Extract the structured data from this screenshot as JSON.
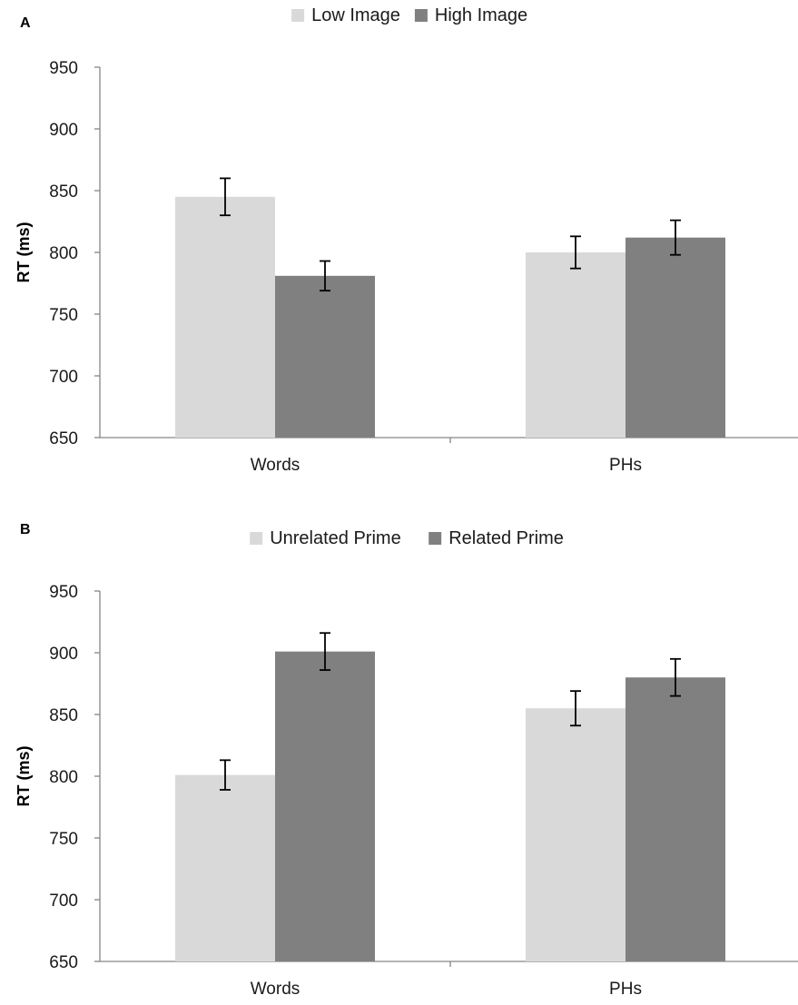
{
  "chart_data": [
    {
      "type": "bar",
      "panel_label": "A",
      "ylabel": "RT (ms)",
      "xlabel": "",
      "categories": [
        "Words",
        "PHs"
      ],
      "ylim": [
        650,
        950
      ],
      "yticks": [
        650,
        700,
        750,
        800,
        850,
        900,
        950
      ],
      "grid": false,
      "legend_position": "top-center",
      "series": [
        {
          "name": "Low Image",
          "color": "#d9d9d9",
          "values": [
            845,
            800
          ],
          "errors": [
            15,
            13
          ]
        },
        {
          "name": "High Image",
          "color": "#808080",
          "values": [
            781,
            812
          ],
          "errors": [
            12,
            14
          ]
        }
      ]
    },
    {
      "type": "bar",
      "panel_label": "B",
      "ylabel": "RT (ms)",
      "xlabel": "",
      "categories": [
        "Words",
        "PHs"
      ],
      "ylim": [
        650,
        950
      ],
      "yticks": [
        650,
        700,
        750,
        800,
        850,
        900,
        950
      ],
      "grid": false,
      "legend_position": "top-center",
      "series": [
        {
          "name": "Unrelated Prime",
          "color": "#d9d9d9",
          "values": [
            801,
            855
          ],
          "errors": [
            12,
            14
          ]
        },
        {
          "name": "Related Prime",
          "color": "#808080",
          "values": [
            901,
            880
          ],
          "errors": [
            15,
            15
          ]
        }
      ]
    }
  ]
}
